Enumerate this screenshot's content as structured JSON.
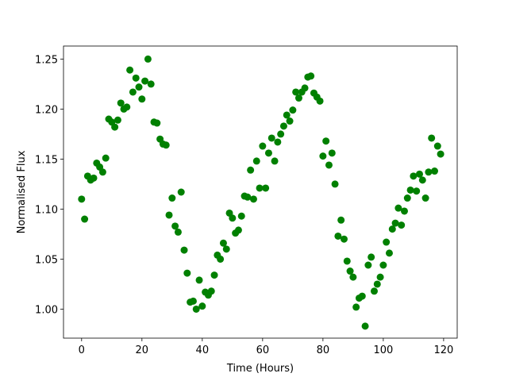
{
  "chart_data": {
    "type": "scatter",
    "x_label": "Time (Hours)",
    "y_label": "Normalised Flux",
    "color": "#008000",
    "x": [
      0,
      1,
      2,
      3,
      4,
      5,
      6,
      7,
      8,
      9,
      10,
      11,
      12,
      13,
      14,
      15,
      16,
      17,
      18,
      19,
      20,
      21,
      22,
      23,
      24,
      25,
      26,
      27,
      28,
      29,
      30,
      31,
      32,
      33,
      34,
      35,
      36,
      37,
      38,
      39,
      40,
      41,
      42,
      43,
      44,
      45,
      46,
      47,
      48,
      49,
      50,
      51,
      52,
      53,
      54,
      55,
      56,
      57,
      58,
      59,
      60,
      61,
      62,
      63,
      64,
      65,
      66,
      67,
      68,
      69,
      70,
      71,
      72,
      73,
      74,
      75,
      76,
      77,
      78,
      79,
      80,
      81,
      82,
      83,
      84,
      85,
      86,
      87,
      88,
      89,
      90,
      91,
      92,
      93,
      94,
      95,
      96,
      97,
      98,
      99,
      100,
      101,
      102,
      103,
      104,
      105,
      106,
      107,
      108,
      109,
      110,
      111,
      112,
      113,
      114,
      115,
      116,
      117,
      118,
      119
    ],
    "values": [
      1.11,
      1.09,
      1.133,
      1.129,
      1.131,
      1.146,
      1.142,
      1.137,
      1.151,
      1.19,
      1.187,
      1.182,
      1.189,
      1.206,
      1.2,
      1.202,
      1.239,
      1.217,
      1.231,
      1.222,
      1.21,
      1.228,
      1.25,
      1.225,
      1.187,
      1.186,
      1.17,
      1.165,
      1.164,
      1.094,
      1.111,
      1.083,
      1.077,
      1.117,
      1.059,
      1.036,
      1.007,
      1.008,
      1.0,
      1.029,
      1.003,
      1.017,
      1.014,
      1.018,
      1.034,
      1.054,
      1.05,
      1.066,
      1.06,
      1.096,
      1.091,
      1.076,
      1.079,
      1.093,
      1.113,
      1.112,
      1.139,
      1.11,
      1.148,
      1.121,
      1.163,
      1.121,
      1.156,
      1.171,
      1.148,
      1.167,
      1.175,
      1.183,
      1.194,
      1.188,
      1.199,
      1.217,
      1.211,
      1.217,
      1.221,
      1.232,
      1.233,
      1.216,
      1.212,
      1.208,
      1.153,
      1.168,
      1.144,
      1.156,
      1.125,
      1.073,
      1.089,
      1.07,
      1.048,
      1.038,
      1.032,
      1.002,
      1.011,
      1.013,
      0.983,
      1.044,
      1.052,
      1.018,
      1.025,
      1.032,
      1.044,
      1.067,
      1.056,
      1.08,
      1.086,
      1.101,
      1.084,
      1.098,
      1.111,
      1.119,
      1.133,
      1.118,
      1.135,
      1.129,
      1.111,
      1.137,
      1.171,
      1.138,
      1.163,
      1.155
    ],
    "xlim": [
      -6,
      124.5
    ],
    "ylim": [
      0.971,
      1.263
    ],
    "xticks": [
      0,
      20,
      40,
      60,
      80,
      100,
      120
    ],
    "yticks": [
      {
        "value": 1.0,
        "label": "1.00"
      },
      1.05,
      {
        "value": 1.1,
        "label": "1.10"
      },
      1.15,
      {
        "value": 1.2,
        "label": "1.20"
      },
      1.25
    ]
  }
}
